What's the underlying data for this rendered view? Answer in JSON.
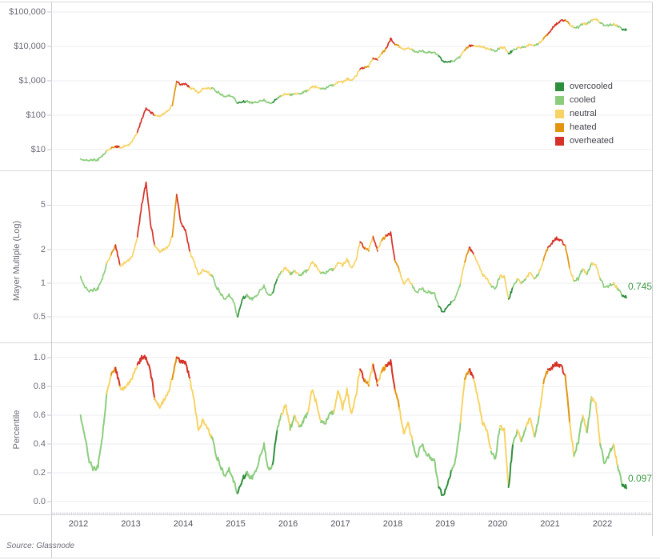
{
  "source_note": "Source: Glassnode",
  "colors": {
    "annotation_green": "#3d9a43",
    "grid": "#ececf0",
    "frame": "#d9d9de",
    "axis_line": "#cbcbd2",
    "tick": "#c6c6cd",
    "minor_tick": "#d2d2d7"
  },
  "legend": {
    "items": [
      {
        "code": "g",
        "label": "overcooled",
        "color": "#2e8e3d"
      },
      {
        "code": "c",
        "label": "cooled",
        "color": "#8ccd7d"
      },
      {
        "code": "n",
        "label": "neutral",
        "color": "#f7d365"
      },
      {
        "code": "h",
        "label": "heated",
        "color": "#e2940f"
      },
      {
        "code": "r",
        "label": "overheated",
        "color": "#d63127"
      }
    ]
  },
  "xaxis": {
    "years": [
      "2012",
      "2013",
      "2014",
      "2015",
      "2016",
      "2017",
      "2018",
      "2019",
      "2020",
      "2021",
      "2022"
    ],
    "cadence": "monthly",
    "start": "2012-01",
    "end": "2022-06",
    "count": 126
  },
  "categories_by_year": [
    "ccccccnhrnnn",
    "nrrrrnnnnhrr",
    "rnnnnncccccc",
    "ggccccccgcnn",
    "cnccnnncccnn",
    "nnnnrhnrnhrr",
    "hnnnccccccgg",
    "gccnhrnnnncc",
    "nngcncnncnhr",
    "rrrhnccncnnc",
    "ccncgg"
  ],
  "chart_data": [
    {
      "type": "line",
      "panel": "price",
      "name": "BTC price (USD), colored by Mayer Multiple heat category",
      "yscale": "log",
      "ylim": [
        3,
        150000
      ],
      "yticks": [
        10,
        100,
        1000,
        10000,
        100000
      ],
      "ytick_labels": [
        "$10",
        "$100",
        "$1,000",
        "$10,000",
        "$100,000"
      ],
      "ylabel": "",
      "grid": true,
      "legend_position": "right-inside",
      "values_by_year": [
        [
          5.4,
          4.9,
          4.9,
          5.0,
          5.1,
          6.6,
          9.0,
          11.0,
          12.4,
          11.6,
          12.4,
          13.4
        ],
        [
          19,
          32,
          75,
          160,
          120,
          103,
          90,
          110,
          133,
          190,
          950,
          760
        ],
        [
          830,
          620,
          570,
          450,
          580,
          620,
          610,
          510,
          420,
          350,
          370,
          320
        ],
        [
          225,
          245,
          255,
          230,
          235,
          255,
          282,
          230,
          235,
          310,
          360,
          430
        ],
        [
          385,
          425,
          415,
          450,
          530,
          670,
          655,
          575,
          610,
          700,
          740,
          950
        ],
        [
          920,
          1150,
          1080,
          1300,
          2200,
          2500,
          2700,
          4500,
          4300,
          6100,
          9000,
          16500
        ],
        [
          11500,
          10000,
          8500,
          8900,
          8000,
          6700,
          7400,
          6900,
          6600,
          6400,
          5300,
          3700
        ],
        [
          3550,
          3700,
          4000,
          5200,
          7800,
          10500,
          10200,
          10000,
          9800,
          8500,
          8200,
          7300
        ],
        [
          9000,
          9300,
          6200,
          7600,
          9200,
          9300,
          9800,
          11500,
          10800,
          12500,
          16500,
          23000
        ],
        [
          33000,
          46000,
          55000,
          60000,
          43000,
          35500,
          36000,
          46000,
          45000,
          57000,
          62000,
          49000
        ],
        [
          39000,
          41500,
          44500,
          39500,
          31500,
          30000
        ]
      ]
    },
    {
      "type": "line",
      "panel": "mayer",
      "name": "Mayer Multiple",
      "yscale": "log",
      "ylim": [
        0.4,
        9
      ],
      "yticks": [
        0.5,
        1,
        2,
        5
      ],
      "ytick_labels": [
        "0.5",
        "1",
        "2",
        "5"
      ],
      "ylabel": "Mayer Multiple (Log)",
      "grid": true,
      "last_value_label": "0.745",
      "values_by_year": [
        [
          1.15,
          0.92,
          0.85,
          0.87,
          0.9,
          1.1,
          1.5,
          1.8,
          2.2,
          1.45,
          1.5,
          1.6
        ],
        [
          1.8,
          2.6,
          5.0,
          8.0,
          3.4,
          2.2,
          1.9,
          2.0,
          2.1,
          2.6,
          6.2,
          3.4
        ],
        [
          3.0,
          1.9,
          1.55,
          1.2,
          1.3,
          1.28,
          1.18,
          0.95,
          0.82,
          0.72,
          0.78,
          0.68
        ],
        [
          0.5,
          0.72,
          0.78,
          0.72,
          0.75,
          0.85,
          0.95,
          0.78,
          0.82,
          1.1,
          1.25,
          1.4
        ],
        [
          1.2,
          1.3,
          1.18,
          1.22,
          1.32,
          1.55,
          1.4,
          1.22,
          1.25,
          1.3,
          1.32,
          1.55
        ],
        [
          1.45,
          1.65,
          1.4,
          1.55,
          2.35,
          2.1,
          2.0,
          2.6,
          2.0,
          2.4,
          2.7,
          2.8
        ],
        [
          1.6,
          1.3,
          1.0,
          1.1,
          0.95,
          0.82,
          0.9,
          0.85,
          0.82,
          0.8,
          0.62,
          0.55
        ],
        [
          0.62,
          0.68,
          0.75,
          1.0,
          1.55,
          2.1,
          1.8,
          1.5,
          1.2,
          1.1,
          0.95,
          0.9
        ],
        [
          1.15,
          1.15,
          0.72,
          0.92,
          1.1,
          1.0,
          1.1,
          1.25,
          1.1,
          1.25,
          1.6,
          2.1
        ],
        [
          2.3,
          2.55,
          2.4,
          2.2,
          1.35,
          1.05,
          1.1,
          1.35,
          1.2,
          1.5,
          1.45,
          1.1
        ],
        [
          0.9,
          0.95,
          1.0,
          0.9,
          0.78,
          0.745
        ]
      ]
    },
    {
      "type": "line",
      "panel": "percentile",
      "name": "Mayer Multiple Percentile",
      "yscale": "linear",
      "ylim": [
        0,
        1
      ],
      "yticks": [
        0,
        0.2,
        0.4,
        0.6,
        0.8,
        1.0
      ],
      "ytick_labels": [
        "0.0",
        "0.2",
        "0.4",
        "0.6",
        "0.8",
        "1.0"
      ],
      "ylabel": "Percentile",
      "grid": true,
      "last_value_label": "0.097",
      "values_by_year": [
        [
          0.6,
          0.45,
          0.28,
          0.22,
          0.25,
          0.45,
          0.75,
          0.88,
          0.93,
          0.8,
          0.78,
          0.82
        ],
        [
          0.87,
          0.95,
          1.0,
          1.0,
          0.9,
          0.72,
          0.65,
          0.7,
          0.75,
          0.85,
          1.0,
          0.97
        ],
        [
          0.97,
          0.85,
          0.7,
          0.5,
          0.56,
          0.52,
          0.45,
          0.33,
          0.25,
          0.18,
          0.22,
          0.14
        ],
        [
          0.06,
          0.15,
          0.2,
          0.16,
          0.2,
          0.3,
          0.4,
          0.22,
          0.26,
          0.5,
          0.6,
          0.68
        ],
        [
          0.5,
          0.6,
          0.52,
          0.55,
          0.62,
          0.78,
          0.68,
          0.55,
          0.55,
          0.6,
          0.62,
          0.78
        ],
        [
          0.65,
          0.78,
          0.62,
          0.72,
          0.92,
          0.85,
          0.82,
          0.95,
          0.82,
          0.9,
          0.95,
          0.97
        ],
        [
          0.78,
          0.65,
          0.48,
          0.55,
          0.42,
          0.3,
          0.4,
          0.35,
          0.3,
          0.28,
          0.1,
          0.04
        ],
        [
          0.12,
          0.22,
          0.3,
          0.55,
          0.85,
          0.92,
          0.85,
          0.72,
          0.55,
          0.5,
          0.35,
          0.3
        ],
        [
          0.52,
          0.5,
          0.1,
          0.4,
          0.5,
          0.42,
          0.52,
          0.58,
          0.45,
          0.6,
          0.82,
          0.92
        ],
        [
          0.93,
          0.96,
          0.94,
          0.88,
          0.55,
          0.32,
          0.42,
          0.6,
          0.48,
          0.72,
          0.68,
          0.4
        ],
        [
          0.25,
          0.33,
          0.4,
          0.25,
          0.12,
          0.097
        ]
      ]
    }
  ]
}
